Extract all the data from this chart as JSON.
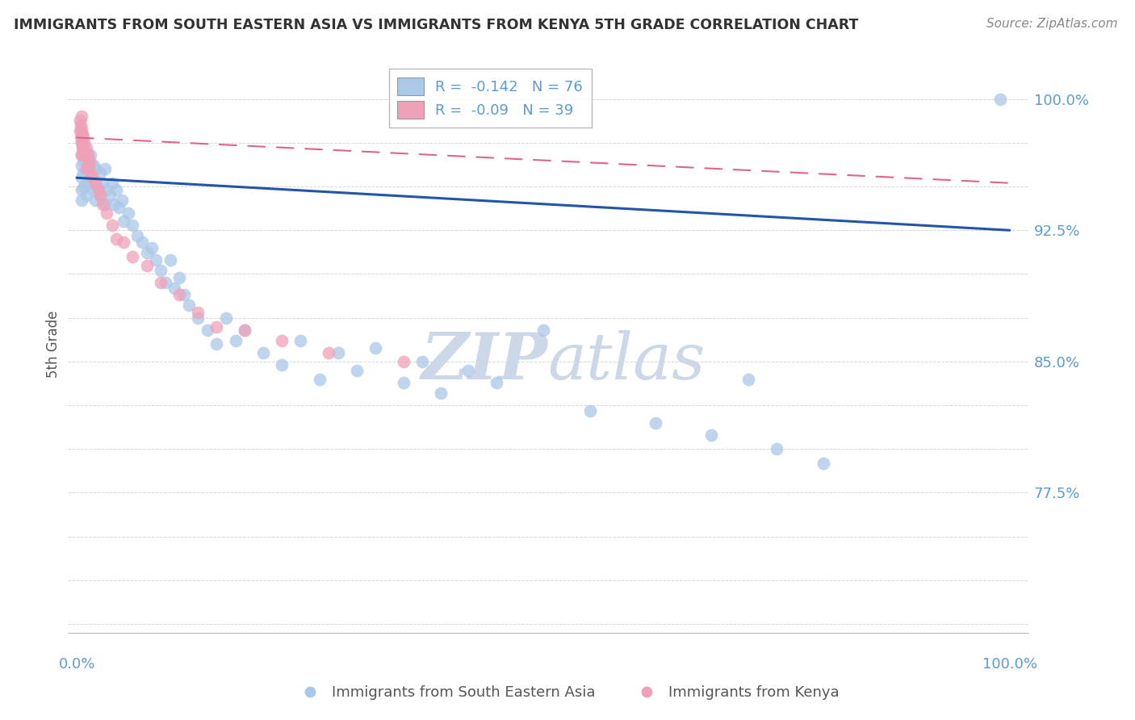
{
  "title": "IMMIGRANTS FROM SOUTH EASTERN ASIA VS IMMIGRANTS FROM KENYA 5TH GRADE CORRELATION CHART",
  "source": "Source: ZipAtlas.com",
  "ylabel": "5th Grade",
  "ymin": 0.695,
  "ymax": 1.025,
  "xmin": -0.01,
  "xmax": 1.02,
  "blue_R": -0.142,
  "blue_N": 76,
  "pink_R": -0.09,
  "pink_N": 39,
  "legend_label_blue": "Immigrants from South Eastern Asia",
  "legend_label_pink": "Immigrants from Kenya",
  "blue_color": "#aac8e8",
  "blue_line_color": "#2255aa",
  "pink_color": "#f0a0b8",
  "pink_line_color": "#dd6688",
  "title_color": "#333333",
  "axis_label_color": "#5b9bd5",
  "grid_color": "#cccccc",
  "watermark_color": "#ccd8e8",
  "ytick_positions": [
    0.775,
    0.85,
    0.925,
    1.0
  ],
  "ytick_labels": [
    "77.5%",
    "85.0%",
    "92.5%",
    "100.0%"
  ],
  "blue_x": [
    0.005,
    0.005,
    0.005,
    0.005,
    0.005,
    0.005,
    0.005,
    0.007,
    0.007,
    0.008,
    0.008,
    0.01,
    0.01,
    0.01,
    0.012,
    0.012,
    0.015,
    0.015,
    0.018,
    0.018,
    0.02,
    0.02,
    0.022,
    0.025,
    0.025,
    0.028,
    0.03,
    0.03,
    0.032,
    0.035,
    0.038,
    0.04,
    0.042,
    0.045,
    0.048,
    0.05,
    0.055,
    0.06,
    0.065,
    0.07,
    0.075,
    0.08,
    0.085,
    0.09,
    0.095,
    0.1,
    0.105,
    0.11,
    0.115,
    0.12,
    0.13,
    0.14,
    0.15,
    0.16,
    0.17,
    0.18,
    0.2,
    0.22,
    0.24,
    0.26,
    0.28,
    0.3,
    0.32,
    0.35,
    0.37,
    0.39,
    0.42,
    0.45,
    0.5,
    0.55,
    0.62,
    0.68,
    0.72,
    0.75,
    0.8,
    0.99
  ],
  "blue_y": [
    0.98,
    0.975,
    0.968,
    0.962,
    0.955,
    0.948,
    0.942,
    0.972,
    0.958,
    0.965,
    0.95,
    0.97,
    0.96,
    0.945,
    0.965,
    0.952,
    0.968,
    0.955,
    0.962,
    0.948,
    0.96,
    0.942,
    0.95,
    0.958,
    0.945,
    0.952,
    0.96,
    0.94,
    0.948,
    0.945,
    0.952,
    0.94,
    0.948,
    0.938,
    0.942,
    0.93,
    0.935,
    0.928,
    0.922,
    0.918,
    0.912,
    0.915,
    0.908,
    0.902,
    0.895,
    0.908,
    0.892,
    0.898,
    0.888,
    0.882,
    0.875,
    0.868,
    0.86,
    0.875,
    0.862,
    0.868,
    0.855,
    0.848,
    0.862,
    0.84,
    0.855,
    0.845,
    0.858,
    0.838,
    0.85,
    0.832,
    0.845,
    0.838,
    0.868,
    0.822,
    0.815,
    0.808,
    0.84,
    0.8,
    0.792,
    1.0
  ],
  "pink_x": [
    0.003,
    0.003,
    0.004,
    0.004,
    0.005,
    0.005,
    0.005,
    0.005,
    0.006,
    0.006,
    0.007,
    0.007,
    0.008,
    0.009,
    0.01,
    0.01,
    0.012,
    0.013,
    0.014,
    0.015,
    0.017,
    0.02,
    0.023,
    0.025,
    0.028,
    0.032,
    0.038,
    0.042,
    0.05,
    0.06,
    0.075,
    0.09,
    0.11,
    0.13,
    0.15,
    0.18,
    0.22,
    0.27,
    0.35
  ],
  "pink_y": [
    0.988,
    0.982,
    0.985,
    0.978,
    0.99,
    0.983,
    0.975,
    0.968,
    0.98,
    0.972,
    0.978,
    0.97,
    0.975,
    0.968,
    0.972,
    0.96,
    0.968,
    0.962,
    0.965,
    0.958,
    0.955,
    0.952,
    0.948,
    0.945,
    0.94,
    0.935,
    0.928,
    0.92,
    0.918,
    0.91,
    0.905,
    0.895,
    0.888,
    0.878,
    0.87,
    0.868,
    0.862,
    0.855,
    0.85
  ],
  "blue_trend_x0": 0.0,
  "blue_trend_y0": 0.955,
  "blue_trend_x1": 1.0,
  "blue_trend_y1": 0.925,
  "pink_trend_x0": 0.0,
  "pink_trend_y0": 0.978,
  "pink_trend_x1": 1.0,
  "pink_trend_y1": 0.952
}
